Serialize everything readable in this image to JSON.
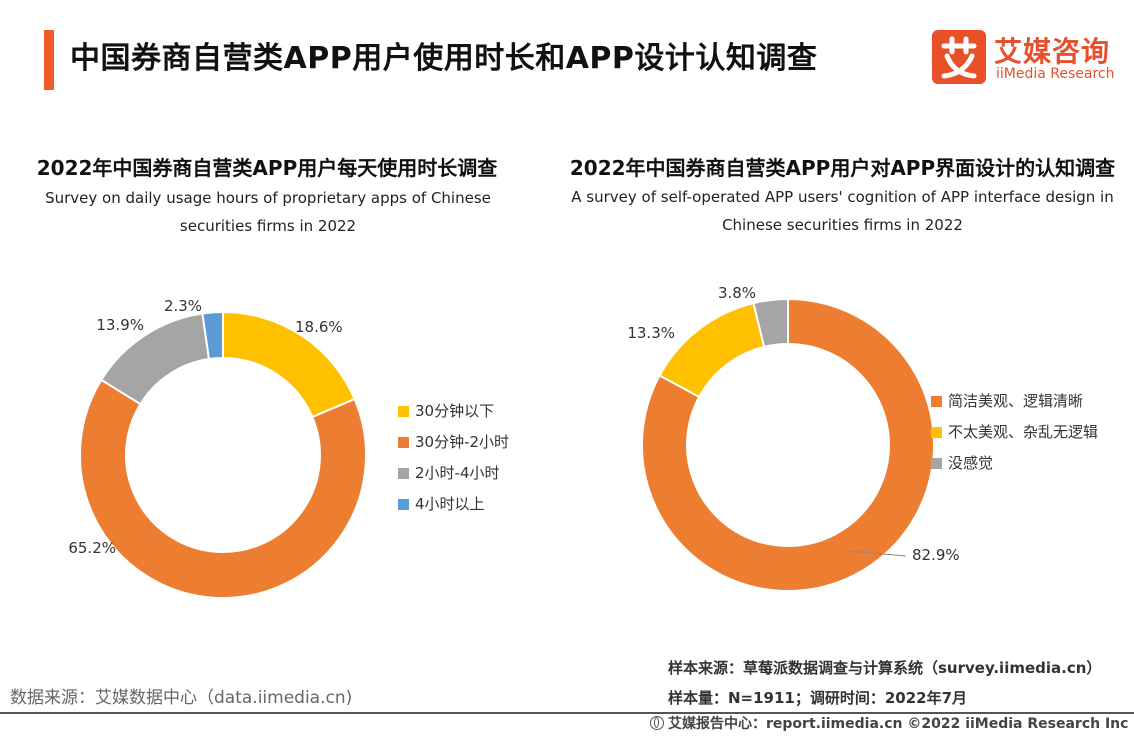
{
  "header": {
    "title": "中国券商自营类APP用户使用时长和APP设计认知调查",
    "logo_cn": "艾媒咨询",
    "logo_en": "iiMedia Research",
    "accent_color": "#f05a28"
  },
  "chart_data": [
    {
      "type": "pie",
      "donut": true,
      "title": "2022年中国券商自营类APP用户每天使用时长调查",
      "subtitle_line1": "Survey on daily usage hours of proprietary apps of Chinese",
      "subtitle_line2": "securities firms in 2022",
      "legend_position": "right",
      "categories": [
        "30分钟以下",
        "30分钟-2小时",
        "2小时-4小时",
        "4小时以上"
      ],
      "values": [
        18.6,
        65.2,
        13.9,
        2.3
      ],
      "labels": [
        "18.6%",
        "65.2%",
        "13.9%",
        "2.3%"
      ],
      "colors": [
        "#ffc000",
        "#ed7d31",
        "#a5a5a5",
        "#5b9bd5"
      ]
    },
    {
      "type": "pie",
      "donut": true,
      "title": "2022年中国券商自营类APP用户对APP界面设计的认知调查",
      "subtitle_line1": "A survey of self-operated APP users' cognition of APP interface design in",
      "subtitle_line2": "Chinese securities firms in 2022",
      "legend_position": "right",
      "categories": [
        "简洁美观、逻辑清晰",
        "不太美观、杂乱无逻辑",
        "没感觉"
      ],
      "values": [
        82.9,
        13.3,
        3.8
      ],
      "labels": [
        "82.9%",
        "13.3%",
        "3.8%"
      ],
      "colors": [
        "#ed7d31",
        "#ffc000",
        "#a5a5a5"
      ]
    }
  ],
  "footer": {
    "sample_source": "样本来源：草莓派数据调查与计算系统（survey.iimedia.cn）",
    "sample_size": "样本量：N=1911；调研时间：2022年7月",
    "data_source": "数据来源：艾媒数据中心（data.iimedia.cn)",
    "report_center": "艾媒报告中心：report.iimedia.cn  ©2022  iiMedia Research  Inc"
  }
}
